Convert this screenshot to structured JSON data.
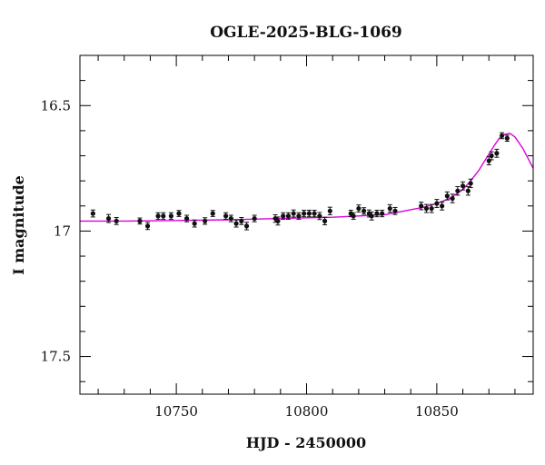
{
  "chart_data": {
    "type": "scatter",
    "title": "OGLE-2025-BLG-1069",
    "xlabel": "HJD - 2450000",
    "ylabel": "I magnitude",
    "xlim": [
      10713,
      10887
    ],
    "ylim": [
      17.65,
      16.3
    ],
    "y_inverted": true,
    "grid": false,
    "x_major_ticks": [
      10750,
      10800,
      10850
    ],
    "x_minor_step": 10,
    "y_major_ticks": [
      16.5,
      17,
      17.5
    ],
    "y_tick_labels": [
      "16.5",
      "17",
      "17.5"
    ],
    "y_minor_step": 0.1,
    "model_color": "#dd00dd",
    "point_color": "#111111",
    "series": [
      {
        "type": "scatter",
        "x": [
          10718,
          10724,
          10727,
          10736,
          10739,
          10743,
          10745,
          10748,
          10751,
          10754,
          10757,
          10761,
          10764,
          10769,
          10771,
          10773,
          10775,
          10777,
          10780,
          10788,
          10789,
          10791,
          10793,
          10795,
          10797,
          10799,
          10801,
          10803,
          10805,
          10807,
          10809,
          10817,
          10818,
          10820,
          10822,
          10824,
          10825,
          10827,
          10829,
          10832,
          10834,
          10844,
          10846,
          10848,
          10850,
          10852,
          10854,
          10856,
          10858,
          10860,
          10862,
          10863,
          10870,
          10871,
          10873,
          10875,
          10877
        ],
        "y": [
          16.93,
          16.95,
          16.96,
          16.96,
          16.98,
          16.94,
          16.94,
          16.94,
          16.93,
          16.95,
          16.97,
          16.96,
          16.93,
          16.94,
          16.95,
          16.97,
          16.96,
          16.98,
          16.95,
          16.95,
          16.96,
          16.94,
          16.94,
          16.93,
          16.94,
          16.93,
          16.93,
          16.93,
          16.94,
          16.96,
          16.92,
          16.93,
          16.94,
          16.91,
          16.92,
          16.93,
          16.94,
          16.93,
          16.93,
          16.91,
          16.92,
          16.9,
          16.91,
          16.91,
          16.89,
          16.9,
          16.86,
          16.87,
          16.84,
          16.82,
          16.84,
          16.81,
          16.72,
          16.7,
          16.69,
          16.62,
          16.63
        ],
        "err": [
          0.014,
          0.016,
          0.014,
          0.012,
          0.014,
          0.013,
          0.013,
          0.013,
          0.012,
          0.013,
          0.014,
          0.013,
          0.012,
          0.013,
          0.013,
          0.014,
          0.014,
          0.015,
          0.013,
          0.015,
          0.016,
          0.013,
          0.013,
          0.014,
          0.013,
          0.013,
          0.013,
          0.013,
          0.014,
          0.015,
          0.015,
          0.013,
          0.013,
          0.014,
          0.013,
          0.014,
          0.016,
          0.013,
          0.013,
          0.015,
          0.014,
          0.015,
          0.016,
          0.016,
          0.016,
          0.016,
          0.016,
          0.017,
          0.017,
          0.016,
          0.017,
          0.017,
          0.016,
          0.016,
          0.016,
          0.012,
          0.012
        ]
      },
      {
        "type": "line",
        "x": [
          10713,
          10730,
          10750,
          10770,
          10790,
          10810,
          10820,
          10830,
          10835,
          10840,
          10845,
          10850,
          10855,
          10860,
          10863,
          10866,
          10869,
          10872,
          10874,
          10876,
          10878,
          10880,
          10883,
          10887
        ],
        "y": [
          16.96,
          16.96,
          16.958,
          16.955,
          16.95,
          16.945,
          16.94,
          16.935,
          16.925,
          16.915,
          16.905,
          16.89,
          16.87,
          16.835,
          16.8,
          16.76,
          16.71,
          16.66,
          16.63,
          16.615,
          16.61,
          16.625,
          16.67,
          16.75
        ]
      }
    ]
  }
}
